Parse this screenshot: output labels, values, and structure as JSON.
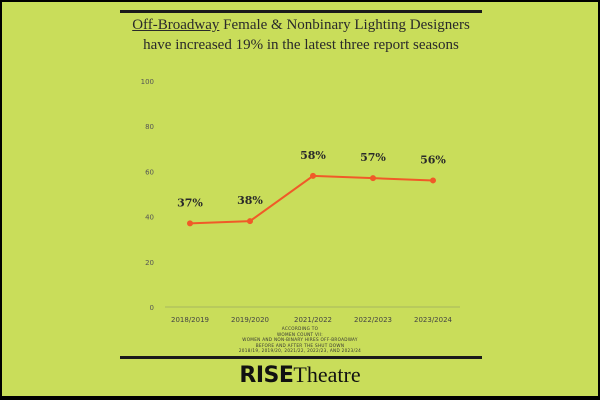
{
  "title": {
    "underlined": "Off-Broadway",
    "rest": " Female & Nonbinary Lighting Designers have increased 19% in the latest three report seasons"
  },
  "chart_data": {
    "type": "line",
    "categories": [
      "2018/2019",
      "2019/2020",
      "2021/2022",
      "2022/2023",
      "2023/2024"
    ],
    "values": [
      37,
      38,
      58,
      57,
      56
    ],
    "data_labels": [
      "37%",
      "38%",
      "58%",
      "57%",
      "56%"
    ],
    "ylim": [
      0,
      100
    ],
    "yticks": [
      0,
      20,
      40,
      60,
      80,
      100
    ],
    "grid": false,
    "line_color": "#f05a28",
    "text_color": "#2a2a2a"
  },
  "footnote": [
    "ACCORDING TO",
    "WOMEN COUNT VII:",
    "WOMEN AND NON-BINARY HIRES OFF-BROADWAY",
    "BEFORE AND AFTER THE SHUT DOWN",
    "2018/19, 2019/20, 2021/22, 2022/23, AND 2023/24"
  ],
  "logo": {
    "bold": "RISE",
    "light": "Theatre"
  },
  "colors": {
    "background": "#c9dd5a",
    "accent": "#f05a28"
  }
}
